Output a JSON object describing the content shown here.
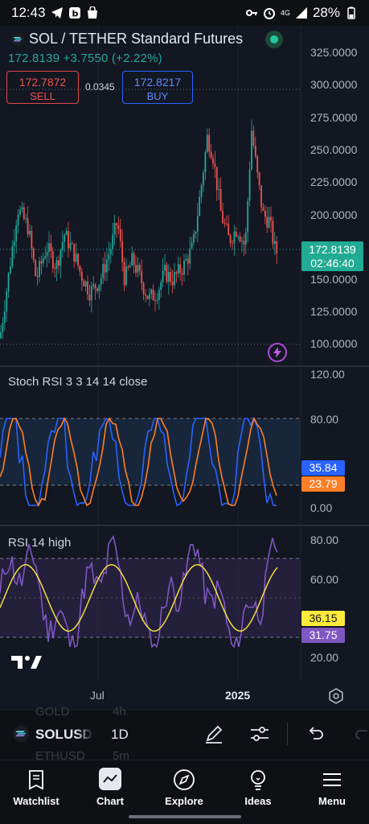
{
  "status_bar": {
    "time": "12:43",
    "battery": "28%",
    "network": "4G"
  },
  "header": {
    "title": "SOL / TETHER Standard Futures",
    "last_price": "172.8139",
    "change": "+3.7550",
    "change_pct": "(+2.22%)"
  },
  "trade": {
    "sell_price": "172.7872",
    "sell_label": "SELL",
    "buy_price": "172.8217",
    "buy_label": "BUY",
    "spread": "0.0345"
  },
  "price_axis": [
    "325.0000",
    "300.0000",
    "275.0000",
    "250.0000",
    "225.0000",
    "200.0000",
    "150.0000",
    "125.0000",
    "100.0000"
  ],
  "price_tag": {
    "price": "172.8139",
    "countdown": "02:46:40"
  },
  "stoch": {
    "title": "Stoch RSI 3 3 14 14 close",
    "axis": [
      "120.00",
      "80.00",
      "0.00"
    ],
    "k": "35.84",
    "d": "23.79"
  },
  "rsi": {
    "title": "RSI 14 high",
    "axis": [
      "80.00",
      "60.00",
      "20.00"
    ],
    "ma": "36.15",
    "value": "31.75"
  },
  "time_axis": [
    "Jul",
    "2025"
  ],
  "toolbar": {
    "symbol": "SOLUSDT",
    "timeframe": "1D",
    "ghost_above": "GOLD",
    "ghost_above_tf": "4h",
    "ghost_below": "ETHUSD",
    "ghost_below_tf": "5m"
  },
  "nav": [
    {
      "label": "Watchlist",
      "icon": "watchlist-icon"
    },
    {
      "label": "Chart",
      "icon": "chart-icon"
    },
    {
      "label": "Explore",
      "icon": "compass-icon"
    },
    {
      "label": "Ideas",
      "icon": "lightbulb-icon"
    },
    {
      "label": "Menu",
      "icon": "hamburger-icon"
    }
  ],
  "colors": {
    "up": "#26a69a",
    "down": "#ef5350",
    "stoch_k": "#2962ff",
    "stoch_d": "#ff7f27",
    "rsi": "#7e57c2",
    "rsi_ma": "#ffeb3b",
    "price_tag": "#22ab94"
  }
}
